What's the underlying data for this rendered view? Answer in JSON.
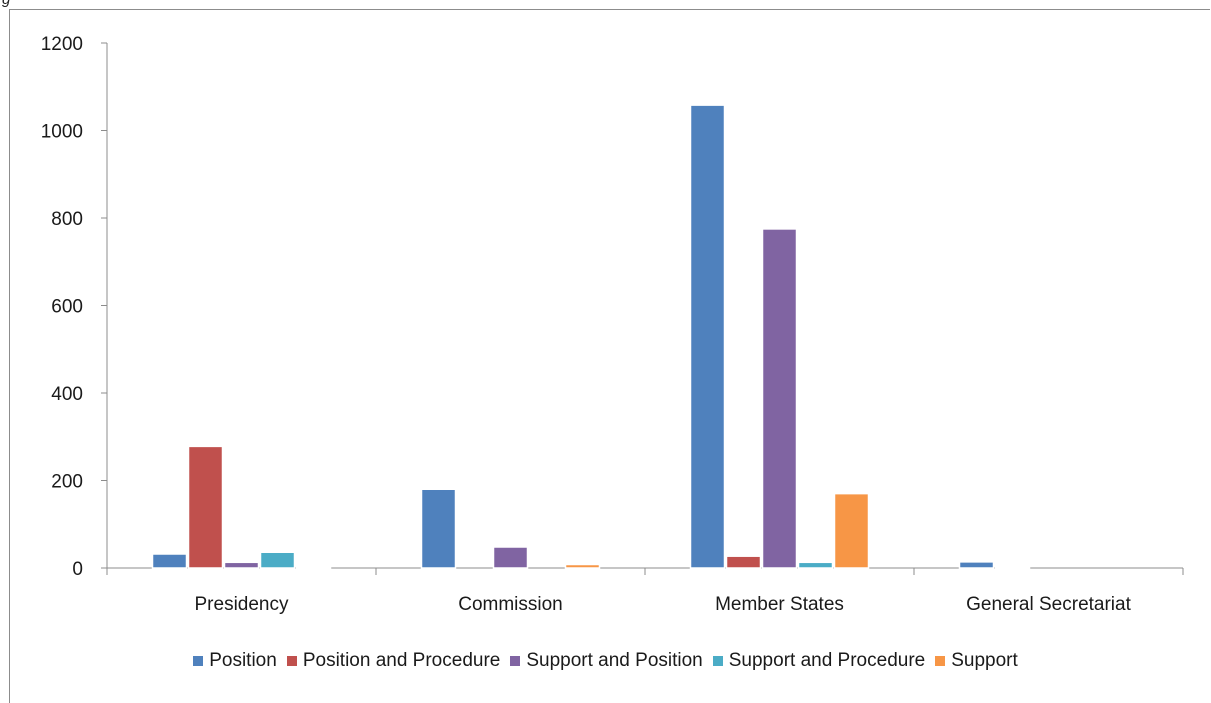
{
  "figure": {
    "caption_visible": "g"
  },
  "colors": {
    "Position": "#4f81bd",
    "Position and Procedure": "#c0504d",
    "Support and Position": "#8064a2",
    "Support and Procedure": "#4bacc6",
    "Support": "#f79646"
  },
  "chart_data": {
    "type": "bar",
    "title": "",
    "xlabel": "",
    "ylabel": "",
    "ylim": [
      0,
      1200
    ],
    "yticks": [
      0,
      200,
      400,
      600,
      800,
      1000,
      1200
    ],
    "grid": false,
    "legend_position": "bottom",
    "categories": [
      "Presidency",
      "Commission",
      "Member States",
      "General Secretariat"
    ],
    "series": [
      {
        "name": "Position",
        "values": [
          32,
          180,
          1058,
          14
        ]
      },
      {
        "name": "Position and Procedure",
        "values": [
          278,
          0,
          27,
          2
        ]
      },
      {
        "name": "Support and Position",
        "values": [
          13,
          48,
          775,
          0
        ]
      },
      {
        "name": "Support and Procedure",
        "values": [
          36,
          0,
          13,
          0
        ]
      },
      {
        "name": "Support",
        "values": [
          2,
          8,
          170,
          0
        ]
      }
    ]
  }
}
